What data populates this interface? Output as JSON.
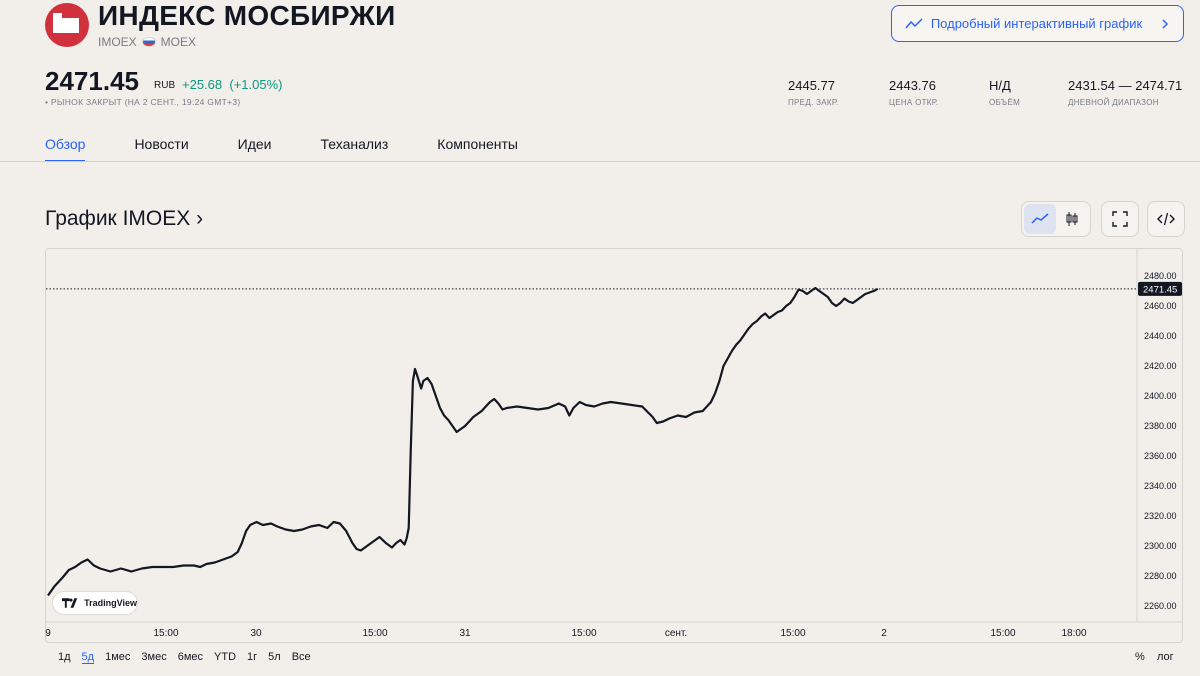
{
  "header": {
    "title": "ИНДЕКС МОСБИРЖИ",
    "ticker": "IMOEX",
    "exchange": "MOEX",
    "external_chart_button": "Подробный интерактивный график"
  },
  "quote": {
    "price": "2471.45",
    "currency": "RUB",
    "change": "+25.68",
    "change_pct": "(+1.05%)",
    "status": "• РЫНОК ЗАКРЫТ (НА 2 СЕНТ., 19:24 GMT+3)",
    "change_color": "#089981"
  },
  "stats": [
    {
      "value": "2445.77",
      "label": "ПРЕД. ЗАКР."
    },
    {
      "value": "2443.76",
      "label": "ЦЕНА ОТКР."
    },
    {
      "value": "Н/Д",
      "label": "ОБЪЁМ"
    },
    {
      "value": "2431.54 — 2474.71",
      "label": "ДНЕВНОЙ ДИАПАЗОН"
    }
  ],
  "tabs": [
    "Обзор",
    "Новости",
    "Идеи",
    "Теханализ",
    "Компоненты"
  ],
  "active_tab": "Обзор",
  "chart_section": {
    "title": "График IMOEX ›",
    "toolbar_icons": [
      "line-chart-icon",
      "candles-icon",
      "fullscreen-icon",
      "embed-code-icon"
    ]
  },
  "branding": {
    "badge_text": "TradingView"
  },
  "ranges": [
    "1д",
    "5д",
    "1мес",
    "3мес",
    "6мес",
    "YTD",
    "1г",
    "5л",
    "Все"
  ],
  "selected_range": "5д",
  "scale_buttons": {
    "percent": "%",
    "log": "лог"
  },
  "accent_color": "#2962ff",
  "chart_data": {
    "type": "line",
    "title": "",
    "xlabel": "",
    "ylabel": "",
    "ylim": [
      2250,
      2485
    ],
    "y_ticks": [
      "2260.00",
      "2280.00",
      "2300.00",
      "2320.00",
      "2340.00",
      "2360.00",
      "2380.00",
      "2400.00",
      "2420.00",
      "2440.00",
      "2460.00",
      "2480.00"
    ],
    "x_tick_labels": [
      "9",
      "15:00",
      "30",
      "15:00",
      "31",
      "15:00",
      "сент.",
      "15:00",
      "2",
      "15:00",
      "18:00"
    ],
    "last_value_label": "2471.45",
    "last_value_line": true,
    "grid": false,
    "legend": "none",
    "series": [
      {
        "color": "#131722",
        "points": [
          [
            29.6,
            2267
          ],
          [
            29.63,
            2273
          ],
          [
            29.67,
            2279
          ],
          [
            29.7,
            2284
          ],
          [
            29.73,
            2286
          ],
          [
            29.76,
            2289
          ],
          [
            29.79,
            2291
          ],
          [
            29.82,
            2287
          ],
          [
            29.85,
            2285
          ],
          [
            29.9,
            2283
          ],
          [
            29.95,
            2285
          ],
          [
            30.0,
            2283
          ],
          [
            30.05,
            2285
          ],
          [
            30.1,
            2286
          ],
          [
            30.15,
            2286
          ],
          [
            30.2,
            2286
          ],
          [
            30.25,
            2287
          ],
          [
            30.3,
            2287
          ],
          [
            30.33,
            2286
          ],
          [
            30.36,
            2288
          ],
          [
            30.4,
            2289
          ],
          [
            30.44,
            2291
          ],
          [
            30.48,
            2293
          ],
          [
            30.51,
            2296
          ],
          [
            30.53,
            2302
          ],
          [
            30.55,
            2310
          ],
          [
            30.57,
            2314
          ],
          [
            30.6,
            2316
          ],
          [
            30.63,
            2314
          ],
          [
            30.67,
            2315
          ],
          [
            30.7,
            2313
          ],
          [
            30.74,
            2311
          ],
          [
            30.78,
            2310
          ],
          [
            30.82,
            2311
          ],
          [
            30.86,
            2313
          ],
          [
            30.9,
            2314
          ],
          [
            30.94,
            2312
          ],
          [
            30.97,
            2316
          ],
          [
            31.0,
            2315
          ],
          [
            31.03,
            2310
          ],
          [
            31.06,
            2302
          ],
          [
            31.08,
            2298
          ],
          [
            31.1,
            2297
          ],
          [
            31.13,
            2300
          ],
          [
            31.16,
            2303
          ],
          [
            31.19,
            2306
          ],
          [
            31.22,
            2302
          ],
          [
            31.25,
            2299
          ],
          [
            31.27,
            2302
          ],
          [
            31.29,
            2304
          ],
          [
            31.31,
            2301
          ],
          [
            31.32,
            2305
          ],
          [
            31.33,
            2312
          ],
          [
            31.34,
            2365
          ],
          [
            31.35,
            2410
          ],
          [
            31.36,
            2418
          ],
          [
            31.37,
            2414
          ],
          [
            31.39,
            2405
          ],
          [
            31.4,
            2410
          ],
          [
            31.42,
            2412
          ],
          [
            31.44,
            2408
          ],
          [
            31.46,
            2400
          ],
          [
            31.48,
            2392
          ],
          [
            31.5,
            2387
          ],
          [
            31.52,
            2384
          ],
          [
            31.54,
            2380
          ],
          [
            31.56,
            2376
          ],
          [
            31.58,
            2378
          ],
          [
            31.6,
            2380
          ],
          [
            31.62,
            2383
          ],
          [
            31.64,
            2386
          ],
          [
            31.66,
            2388
          ],
          [
            31.68,
            2390
          ],
          [
            31.7,
            2393
          ],
          [
            31.72,
            2396
          ],
          [
            31.74,
            2398
          ],
          [
            31.76,
            2395
          ],
          [
            31.78,
            2391
          ],
          [
            31.8,
            2392
          ],
          [
            31.85,
            2393
          ],
          [
            31.9,
            2392
          ],
          [
            31.95,
            2391
          ],
          [
            32.0,
            2392
          ],
          [
            32.05,
            2395
          ],
          [
            32.08,
            2393
          ],
          [
            32.1,
            2387
          ],
          [
            32.12,
            2392
          ],
          [
            32.15,
            2396
          ],
          [
            32.18,
            2394
          ],
          [
            32.22,
            2393
          ],
          [
            32.26,
            2395
          ],
          [
            32.3,
            2396
          ],
          [
            32.35,
            2395
          ],
          [
            32.4,
            2394
          ],
          [
            32.45,
            2393
          ],
          [
            32.5,
            2386
          ],
          [
            32.52,
            2382
          ],
          [
            32.55,
            2383
          ],
          [
            32.58,
            2385
          ],
          [
            32.62,
            2387
          ],
          [
            32.66,
            2386
          ],
          [
            32.7,
            2389
          ],
          [
            32.74,
            2390
          ],
          [
            32.78,
            2396
          ],
          [
            32.8,
            2402
          ],
          [
            32.82,
            2410
          ],
          [
            32.84,
            2420
          ],
          [
            32.86,
            2425
          ],
          [
            32.88,
            2430
          ],
          [
            32.9,
            2434
          ],
          [
            32.92,
            2437
          ],
          [
            32.94,
            2441
          ],
          [
            32.96,
            2445
          ],
          [
            32.98,
            2448
          ],
          [
            33.0,
            2450
          ],
          [
            33.02,
            2453
          ],
          [
            33.04,
            2455
          ],
          [
            33.06,
            2452
          ],
          [
            33.08,
            2454
          ],
          [
            33.1,
            2456
          ],
          [
            33.12,
            2457
          ],
          [
            33.14,
            2460
          ],
          [
            33.16,
            2462
          ],
          [
            33.18,
            2466
          ],
          [
            33.2,
            2471
          ],
          [
            33.22,
            2470
          ],
          [
            33.24,
            2468
          ],
          [
            33.26,
            2470
          ],
          [
            33.28,
            2472
          ],
          [
            33.3,
            2470
          ],
          [
            33.32,
            2468
          ],
          [
            33.34,
            2466
          ],
          [
            33.36,
            2462
          ],
          [
            33.38,
            2460
          ],
          [
            33.4,
            2462
          ],
          [
            33.42,
            2465
          ],
          [
            33.44,
            2463
          ],
          [
            33.46,
            2462
          ],
          [
            33.48,
            2464
          ],
          [
            33.5,
            2466
          ],
          [
            33.52,
            2468
          ],
          [
            33.54,
            2469
          ],
          [
            33.56,
            2470
          ],
          [
            33.58,
            2471.45
          ]
        ]
      }
    ]
  }
}
